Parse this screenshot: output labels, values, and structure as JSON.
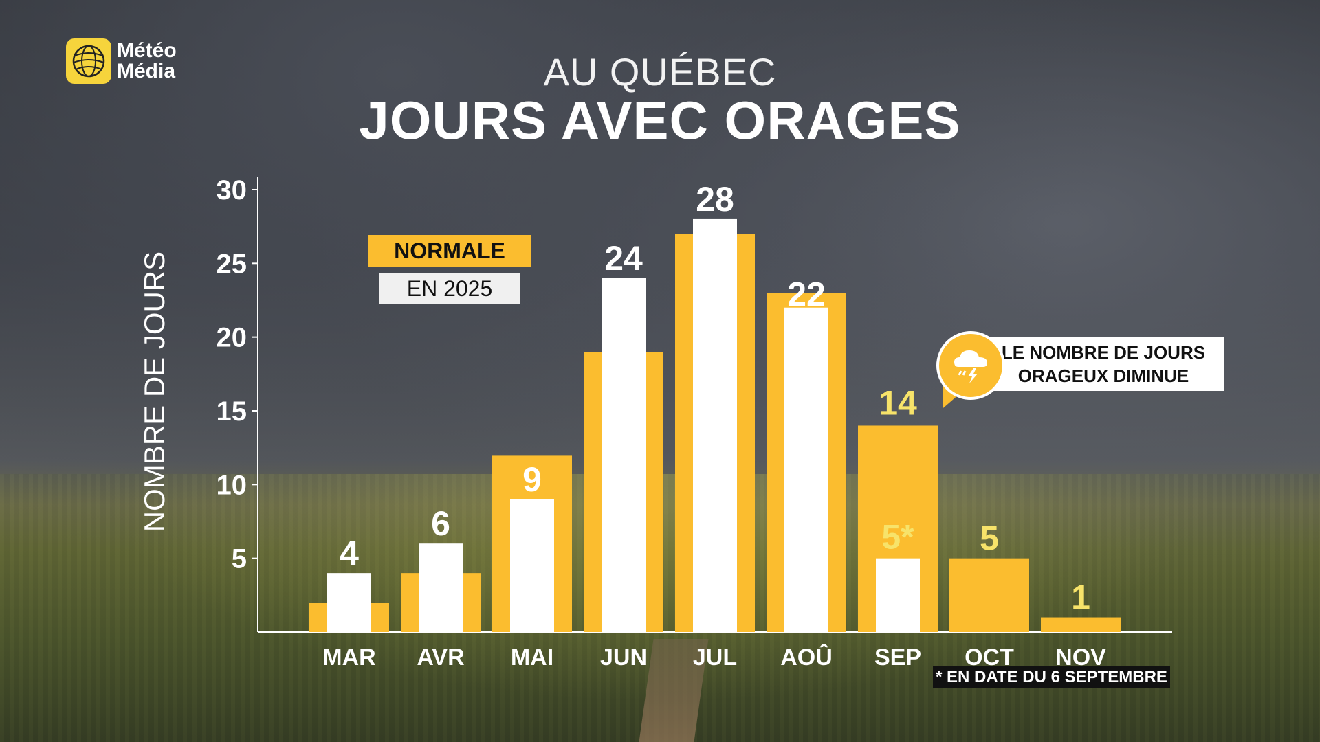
{
  "brand": {
    "name_line1": "Météo",
    "name_line2": "Média"
  },
  "header": {
    "subtitle": "AU QUÉBEC",
    "title": "JOURS AVEC ORAGES"
  },
  "legend": {
    "normale": "NORMALE",
    "current": "EN 2025"
  },
  "callout": {
    "line1": "LE NOMBRE DE JOURS",
    "line2": "ORAGEUX DIMINUE",
    "icon": "storm-cloud-icon"
  },
  "footnote": "* EN DATE DU 6 SEPTEMBRE",
  "colors": {
    "normale": "#fbbd2f",
    "current": "#ffffff",
    "label_light": "#ffffff",
    "label_yellow": "#f7e36a"
  },
  "chart_data": {
    "type": "bar",
    "title": "JOURS AVEC ORAGES",
    "subtitle": "AU QUÉBEC",
    "xlabel": "",
    "ylabel": "NOMBRE DE JOURS",
    "ylim": [
      0,
      30
    ],
    "yticks": [
      5,
      10,
      15,
      20,
      25,
      30
    ],
    "categories": [
      "MAR",
      "AVR",
      "MAI",
      "JUN",
      "JUL",
      "AOÛ",
      "SEP",
      "OCT",
      "NOV"
    ],
    "series": [
      {
        "name": "NORMALE",
        "values": [
          2,
          4,
          12,
          19,
          27,
          23,
          14,
          5,
          1
        ]
      },
      {
        "name": "EN 2025",
        "values": [
          4,
          6,
          9,
          24,
          28,
          22,
          5,
          null,
          null
        ]
      }
    ],
    "data_labels": [
      "4",
      "6",
      "9",
      "24",
      "28",
      "22",
      "5*",
      "5",
      "1"
    ],
    "secondary_labels": [
      "",
      "",
      "",
      "",
      "",
      "",
      "14",
      "",
      ""
    ],
    "grid": false,
    "legend_position": "top-left"
  }
}
